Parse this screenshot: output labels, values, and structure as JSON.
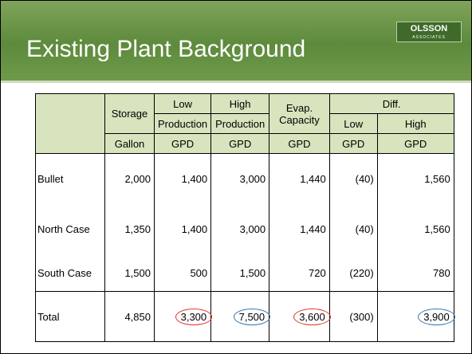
{
  "header": {
    "title": "Existing Plant Background",
    "logo": "OLSSON",
    "logo_sub": "ASSOCIATES"
  },
  "table": {
    "header_rows": [
      [
        "Storage",
        "Low",
        "High",
        "Evap. Capacity",
        "Diff."
      ],
      [
        "Production",
        "Production",
        "Low",
        "High"
      ],
      [
        "Gallon",
        "GPD",
        "GPD",
        "GPD",
        "GPD",
        "GPD"
      ]
    ],
    "rows": [
      [
        "Bullet",
        "2,000",
        "1,400",
        "3,000",
        "1,440",
        "(40)",
        "1,560"
      ],
      [
        "North Case",
        "1,350",
        "1,400",
        "3,000",
        "1,440",
        "(40)",
        "1,560"
      ],
      [
        "South Case",
        "1,500",
        "500",
        "1,500",
        "720",
        "(220)",
        "780"
      ],
      [
        "Total",
        "4,850",
        "3,300",
        "7,500",
        "3,600",
        "(300)",
        "3,900"
      ]
    ]
  }
}
